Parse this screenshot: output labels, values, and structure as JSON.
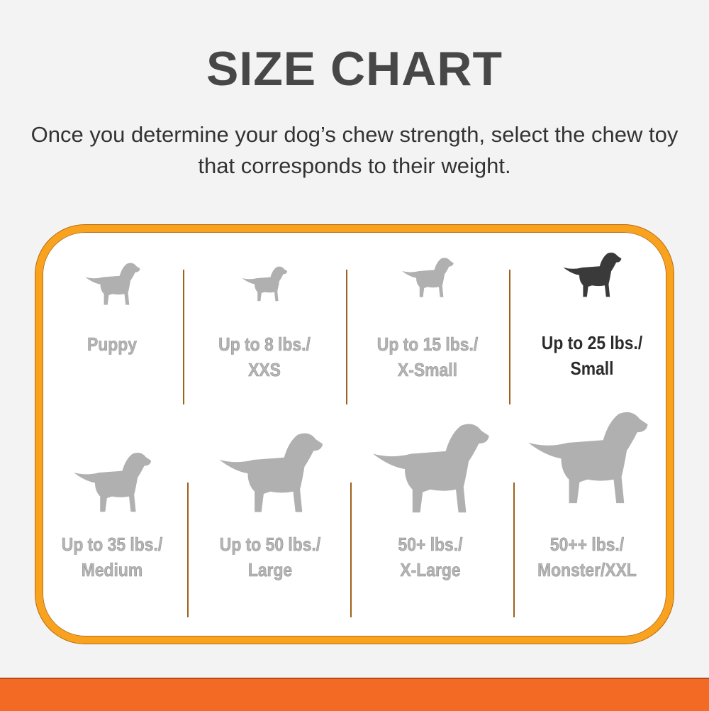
{
  "title": "SIZE CHART",
  "subtitle": "Once you determine your dog’s chew strength, select the chew toy that corresponds to their weight.",
  "colors": {
    "border": "#f8a21e",
    "bottom_bar": "#f26a24",
    "inactive_dog": "#b0b0b0",
    "active_dog": "#3a3a3a"
  },
  "sizes": [
    {
      "line1": "Puppy",
      "line2": "",
      "icon": "puppy-icon",
      "active": false
    },
    {
      "line1": "Up to 8 lbs./",
      "line2": "XXS",
      "icon": "chihuahua-icon",
      "active": false
    },
    {
      "line1": "Up to 15 lbs./",
      "line2": "X-Small",
      "icon": "toy-dog-icon",
      "active": false
    },
    {
      "line1": "Up to 25 lbs./",
      "line2": "Small",
      "icon": "terrier-icon",
      "active": true
    },
    {
      "line1": "Up to 35 lbs./",
      "line2": "Medium",
      "icon": "beagle-icon",
      "active": false
    },
    {
      "line1": "Up to 50 lbs./",
      "line2": "Large",
      "icon": "retriever-icon",
      "active": false
    },
    {
      "line1": "50+ lbs./",
      "line2": "X-Large",
      "icon": "shepherd-icon",
      "active": false
    },
    {
      "line1": "50++ lbs./",
      "line2": "Monster/XXL",
      "icon": "great-dane-icon",
      "active": false
    }
  ]
}
